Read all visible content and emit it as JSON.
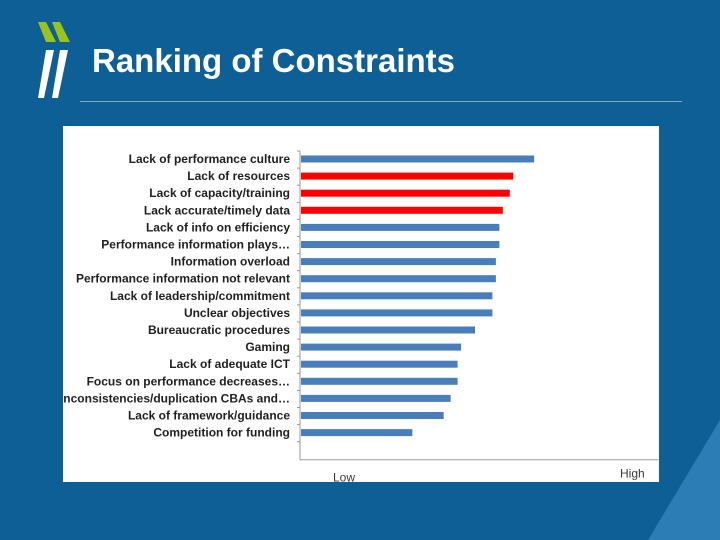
{
  "slide": {
    "title": "Ranking of Constraints",
    "colors": {
      "background": "#0e5f96",
      "accent": "#9ac31c"
    }
  },
  "chart_data": {
    "type": "bar",
    "orientation": "horizontal",
    "categories": [
      "Lack of performance culture",
      "Lack of resources",
      "Lack of capacity/training",
      "Lack accurate/timely data",
      "Lack of info on efficiency",
      "Performance information plays…",
      "Information overload",
      "Performance information not relevant",
      "Lack of leadership/commitment",
      "Unclear objectives",
      "Bureaucratic procedures",
      "Gaming",
      "Lack of adequate ICT",
      "Focus on performance decreases…",
      "Inconsistencies/duplication CBAs and…",
      "Lack of framework/guidance",
      "Competition for funding"
    ],
    "values": [
      0.67,
      0.61,
      0.6,
      0.58,
      0.57,
      0.57,
      0.56,
      0.56,
      0.55,
      0.55,
      0.5,
      0.46,
      0.45,
      0.45,
      0.43,
      0.41,
      0.32
    ],
    "highlighted": [
      false,
      true,
      true,
      true,
      false,
      false,
      false,
      false,
      false,
      false,
      false,
      false,
      false,
      false,
      false,
      false,
      false
    ],
    "colors": {
      "default": "#4a7ebb",
      "highlight": "#ff0000"
    },
    "xlim": [
      0,
      1
    ],
    "x_axis_labels": {
      "low": "Low",
      "high": "High"
    },
    "grid": false,
    "legend": "none"
  }
}
